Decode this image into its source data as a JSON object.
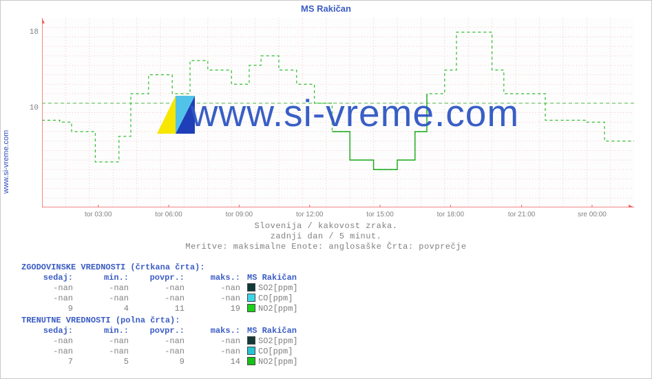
{
  "title": "MS Rakičan",
  "source_label": "www.si-vreme.com",
  "watermark_text": "www.si-vreme.com",
  "subtitle1": "Slovenija / kakovost zraka.",
  "subtitle2": "zadnji dan / 5 minut.",
  "subtitle3": "Meritve: maksimalne  Enote: anglosaške  Črta: povprečje",
  "chart": {
    "type": "line-step",
    "background_color": "#fdfdfd",
    "grid_minor_color": "#f5c6c6",
    "grid_major_dash_color": "#cfe6cf",
    "axis_color": "#f06060",
    "y_min": 0,
    "y_max": 20,
    "y_ticks": [
      10,
      18
    ],
    "x_ticks": [
      {
        "pos": 0.095,
        "label": "tor 03:00"
      },
      {
        "pos": 0.214,
        "label": "tor 06:00"
      },
      {
        "pos": 0.333,
        "label": "tor 09:00"
      },
      {
        "pos": 0.452,
        "label": "tor 12:00"
      },
      {
        "pos": 0.571,
        "label": "tor 15:00"
      },
      {
        "pos": 0.69,
        "label": "tor 18:00"
      },
      {
        "pos": 0.81,
        "label": "tor 21:00"
      },
      {
        "pos": 0.929,
        "label": "sre 00:00"
      }
    ],
    "avg_line_y": 11,
    "avg_line_color": "#4dbb4d",
    "series": {
      "name": "NO2 hist",
      "color": "#2bbd2b",
      "dash": "4 4",
      "points": [
        [
          0.0,
          9.2
        ],
        [
          0.03,
          9.2
        ],
        [
          0.03,
          9.0
        ],
        [
          0.05,
          9.0
        ],
        [
          0.05,
          8.0
        ],
        [
          0.09,
          8.0
        ],
        [
          0.09,
          4.8
        ],
        [
          0.13,
          4.8
        ],
        [
          0.13,
          7.5
        ],
        [
          0.15,
          7.5
        ],
        [
          0.15,
          12.0
        ],
        [
          0.18,
          12.0
        ],
        [
          0.18,
          14.0
        ],
        [
          0.22,
          14.0
        ],
        [
          0.22,
          12.0
        ],
        [
          0.25,
          12.0
        ],
        [
          0.25,
          15.5
        ],
        [
          0.28,
          15.5
        ],
        [
          0.28,
          14.5
        ],
        [
          0.32,
          14.5
        ],
        [
          0.32,
          13.0
        ],
        [
          0.35,
          13.0
        ],
        [
          0.35,
          15.0
        ],
        [
          0.37,
          15.0
        ],
        [
          0.37,
          16.0
        ],
        [
          0.4,
          16.0
        ],
        [
          0.4,
          14.5
        ],
        [
          0.43,
          14.5
        ],
        [
          0.43,
          13.0
        ],
        [
          0.46,
          13.0
        ],
        [
          0.46,
          11.0
        ],
        [
          0.49,
          11.0
        ],
        [
          0.49,
          8.0
        ],
        [
          0.52,
          8.0
        ],
        [
          0.52,
          5.0
        ],
        [
          0.56,
          5.0
        ],
        [
          0.56,
          4.0
        ],
        [
          0.6,
          4.0
        ],
        [
          0.6,
          5.0
        ],
        [
          0.63,
          5.0
        ],
        [
          0.63,
          8.0
        ],
        [
          0.65,
          8.0
        ],
        [
          0.65,
          12.0
        ],
        [
          0.68,
          12.0
        ],
        [
          0.68,
          14.5
        ],
        [
          0.7,
          14.5
        ],
        [
          0.7,
          18.5
        ],
        [
          0.76,
          18.5
        ],
        [
          0.76,
          14.5
        ],
        [
          0.78,
          14.5
        ],
        [
          0.78,
          12.0
        ],
        [
          0.85,
          12.0
        ],
        [
          0.85,
          9.2
        ],
        [
          0.92,
          9.2
        ],
        [
          0.92,
          9.0
        ],
        [
          0.95,
          9.0
        ],
        [
          0.95,
          7.0
        ],
        [
          1.0,
          7.0
        ]
      ]
    },
    "series_current": {
      "name": "NO2 cur",
      "color": "#18a818",
      "dash": "none",
      "points": [
        [
          0.49,
          8.0
        ],
        [
          0.52,
          8.0
        ],
        [
          0.52,
          5.0
        ],
        [
          0.56,
          5.0
        ],
        [
          0.56,
          4.0
        ],
        [
          0.6,
          4.0
        ],
        [
          0.6,
          5.0
        ],
        [
          0.63,
          5.0
        ],
        [
          0.63,
          8.0
        ],
        [
          0.65,
          8.0
        ],
        [
          0.65,
          12.0
        ]
      ]
    }
  },
  "history_table": {
    "title": "ZGODOVINSKE VREDNOSTI (črtkana črta):",
    "columns": [
      "sedaj:",
      "min.:",
      "povpr.:",
      "maks.:"
    ],
    "series_header": "MS Rakičan",
    "rows": [
      {
        "vals": [
          "-nan",
          "-nan",
          "-nan",
          "-nan"
        ],
        "swatch": "#0f3a3a",
        "label": "SO2[ppm]"
      },
      {
        "vals": [
          "-nan",
          "-nan",
          "-nan",
          "-nan"
        ],
        "swatch": "#3bd6e6",
        "label": "CO[ppm]"
      },
      {
        "vals": [
          "9",
          "4",
          "11",
          "19"
        ],
        "swatch": "#1bd11b",
        "label": "NO2[ppm]"
      }
    ]
  },
  "current_table": {
    "title": "TRENUTNE VREDNOSTI (polna črta):",
    "columns": [
      "sedaj:",
      "min.:",
      "povpr.:",
      "maks.:"
    ],
    "series_header": "MS Rakičan",
    "rows": [
      {
        "vals": [
          "-nan",
          "-nan",
          "-nan",
          "-nan"
        ],
        "swatch": "#153838",
        "label": "SO2[ppm]"
      },
      {
        "vals": [
          "-nan",
          "-nan",
          "-nan",
          "-nan"
        ],
        "swatch": "#28c4d4",
        "label": "CO[ppm]"
      },
      {
        "vals": [
          "7",
          "5",
          "9",
          "14"
        ],
        "swatch": "#16c216",
        "label": "NO2[ppm]"
      }
    ]
  },
  "colors": {
    "title": "#3b5cc4",
    "text_muted": "#808080"
  }
}
